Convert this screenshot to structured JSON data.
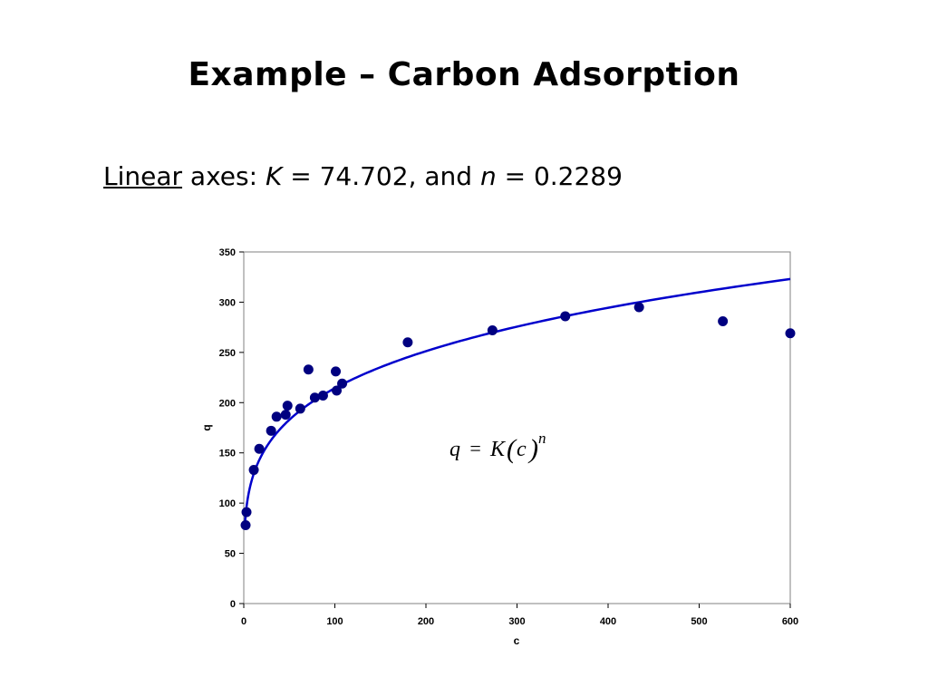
{
  "slide": {
    "title": "Example – Carbon Adsorption",
    "subtitle": {
      "underlined": "Linear",
      "text1": " axes: ",
      "k_symbol": "K",
      "text2": " = 74.702, and ",
      "n_symbol": "n",
      "text3": " = 0.2289"
    }
  },
  "chart_data": {
    "type": "scatter",
    "xlabel": "c",
    "ylabel": "q",
    "xlim": [
      0,
      600
    ],
    "ylim": [
      0,
      350
    ],
    "xticks": [
      0,
      100,
      200,
      300,
      400,
      500,
      600
    ],
    "yticks": [
      0,
      50,
      100,
      150,
      200,
      250,
      300,
      350
    ],
    "grid": false,
    "legend": "none",
    "series": [
      {
        "type": "scatter",
        "color": "#000080",
        "points": [
          [
            2,
            78
          ],
          [
            3,
            91
          ],
          [
            11,
            133
          ],
          [
            17,
            154
          ],
          [
            30,
            172
          ],
          [
            36,
            186
          ],
          [
            46,
            188
          ],
          [
            48,
            197
          ],
          [
            62,
            194
          ],
          [
            71,
            233
          ],
          [
            78,
            205
          ],
          [
            87,
            207
          ],
          [
            101,
            231
          ],
          [
            102,
            212
          ],
          [
            108,
            219
          ],
          [
            180,
            260
          ],
          [
            273,
            272
          ],
          [
            353,
            286
          ],
          [
            434,
            295
          ],
          [
            526,
            281
          ],
          [
            600,
            269
          ]
        ]
      },
      {
        "type": "line",
        "color": "#0000cc",
        "model": "power",
        "K": 74.702,
        "n": 0.2289,
        "x_start": 1,
        "x_end": 600
      }
    ],
    "annotation": {
      "q": "q",
      "eq": "=",
      "K": "K",
      "lparen": "(",
      "c": "c",
      "rparen": ")",
      "n": "n"
    }
  }
}
